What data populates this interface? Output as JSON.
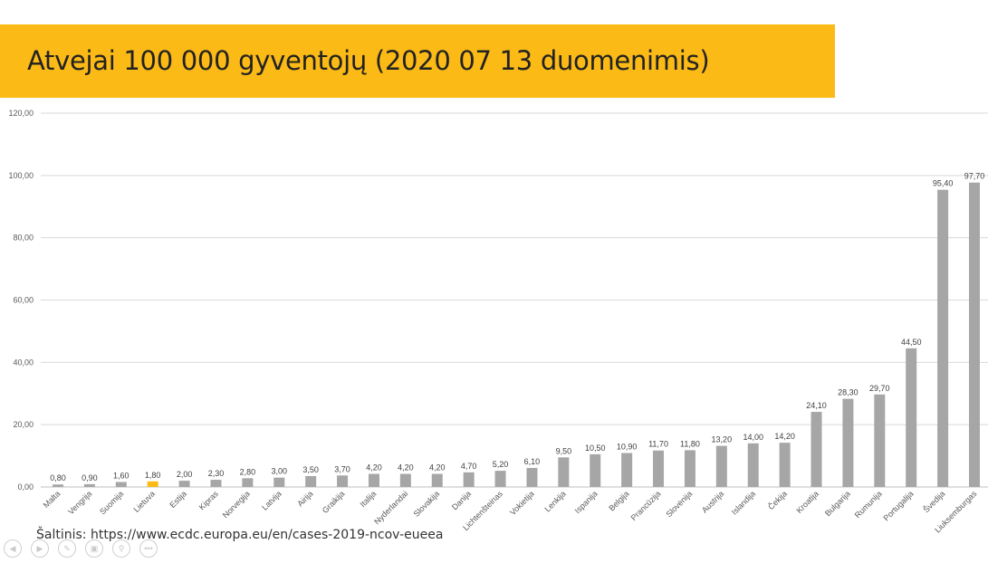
{
  "page": {
    "title": "Atvejai 100 000 gyventojų (2020 07 13 duomenimis)",
    "source": "Šaltinis: https://www.ecdc.europa.eu/en/cases-2019-ncov-eueea",
    "accent_color": "#fbba16"
  },
  "chart_data": {
    "type": "bar",
    "title": "",
    "xlabel": "",
    "ylabel": "",
    "ylim": [
      0,
      120
    ],
    "yticks": [
      "0,00",
      "20,00",
      "40,00",
      "60,00",
      "80,00",
      "100,00",
      "120,00"
    ],
    "grid": true,
    "categories": [
      "Malta",
      "Vengrija",
      "Suomija",
      "Lietuva",
      "Estija",
      "Kipras",
      "Norvegija",
      "Latvija",
      "Airija",
      "Graikija",
      "Italija",
      "Nyderlandai",
      "Slovakija",
      "Danija",
      "Lichtenšteinas",
      "Vokietija",
      "Lenkija",
      "Ispanija",
      "Belgija",
      "Prancūzija",
      "Slovėnija",
      "Austrija",
      "Islandija",
      "Čekija",
      "Kroatija",
      "Bulgarija",
      "Rumunija",
      "Portugalija",
      "Švedija",
      "Liuksemburgas"
    ],
    "values": [
      0.8,
      0.9,
      1.6,
      1.8,
      2.0,
      2.3,
      2.8,
      3.0,
      3.5,
      3.7,
      4.2,
      4.2,
      4.2,
      4.7,
      5.2,
      6.1,
      9.5,
      10.5,
      10.9,
      11.7,
      11.8,
      13.2,
      14.0,
      14.2,
      24.1,
      28.3,
      29.7,
      44.5,
      95.4,
      97.7
    ],
    "data_labels": [
      "0,80",
      "0,90",
      "1,60",
      "1,80",
      "2,00",
      "2,30",
      "2,80",
      "3,00",
      "3,50",
      "3,70",
      "4,20",
      "4,20",
      "4,20",
      "4,70",
      "5,20",
      "6,10",
      "9,50",
      "10,50",
      "10,90",
      "11,70",
      "11,80",
      "13,20",
      "14,00",
      "14,20",
      "24,10",
      "28,30",
      "29,70",
      "44,50",
      "95,40",
      "97,70"
    ],
    "bar_color": "#a6a6a6",
    "highlight_category": "Lietuva",
    "highlight_color": "#fbba16"
  },
  "nav_icons": [
    "prev-icon",
    "next-icon",
    "pen-icon",
    "slides-icon",
    "zoom-icon",
    "more-icon"
  ]
}
